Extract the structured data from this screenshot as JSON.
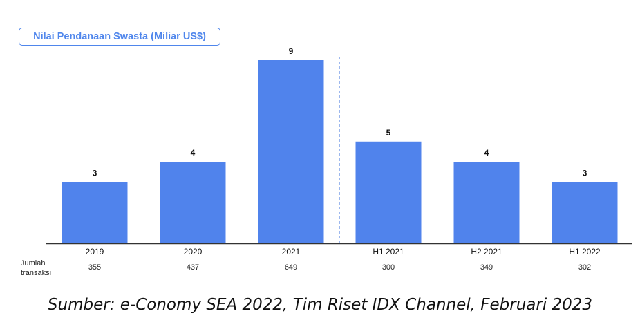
{
  "chart_data": {
    "type": "bar",
    "title": "Nilai Pendanaan Swasta (Miliar US$)",
    "categories": [
      "2019",
      "2020",
      "2021",
      "H1 2021",
      "H2 2021",
      "H1 2022"
    ],
    "values": [
      3,
      4,
      9,
      5,
      4,
      3
    ],
    "transactions_label": "Jumlah transaksi",
    "transactions_label_lines": [
      "Jumlah",
      "transaksi"
    ],
    "transactions": [
      "355",
      "437",
      "649",
      "300",
      "349",
      "302"
    ],
    "ylim": [
      0,
      9
    ],
    "grid": false,
    "legend": "none",
    "bar_color": "#5083ec",
    "divider": "dashed vertical line between 2021 and H1 2021"
  },
  "caption": "Sumber: e-Conomy SEA 2022, Tim Riset IDX Channel, Februari 2023"
}
